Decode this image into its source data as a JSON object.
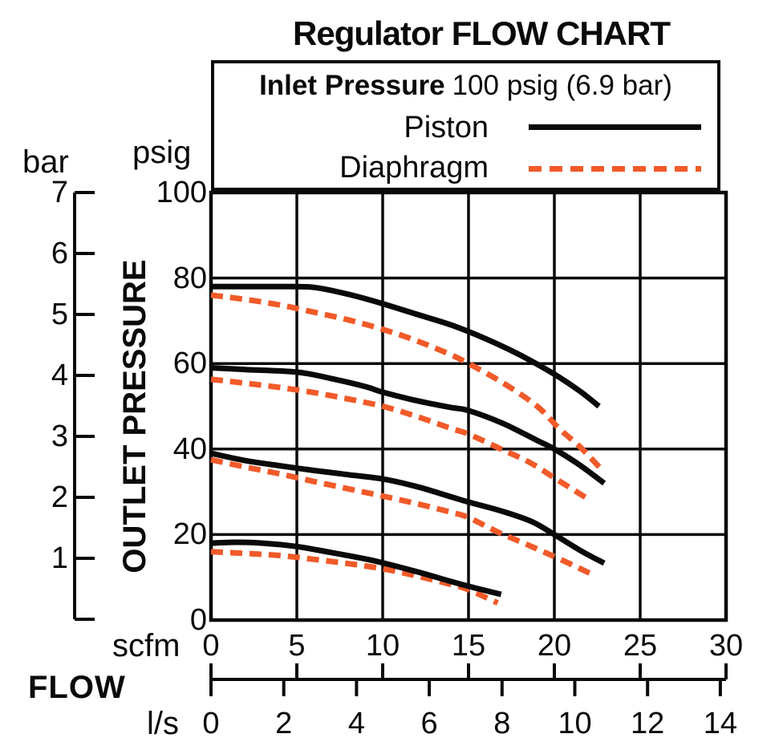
{
  "title": "Regulator FLOW CHART",
  "legend": {
    "inlet_bold": "Inlet Pressure",
    "inlet_rest": "100 psig (6.9 bar)"
  },
  "axes": {
    "y_title": "OUTLET PRESSURE",
    "y_unit_primary": "psig",
    "y_unit_secondary": "bar",
    "psig_ticks": [
      100,
      80,
      60,
      40,
      20,
      0
    ],
    "bar_ticks": [
      7,
      6,
      5,
      4,
      3,
      2,
      1
    ],
    "x_title": "FLOW",
    "x_unit_primary": "scfm",
    "x_unit_secondary": "l/s",
    "scfm_ticks": [
      0,
      5,
      10,
      15,
      20,
      25,
      30
    ],
    "ls_ticks": [
      0,
      2,
      4,
      6,
      8,
      10,
      12,
      14
    ]
  },
  "colors": {
    "piston": "#0a0a0a",
    "diaphragm": "#f15a29",
    "grid": "#000000"
  },
  "chart_data": {
    "type": "line",
    "title": "Regulator FLOW CHART",
    "annotation": "Inlet Pressure 100 psig (6.9 bar)",
    "xlabel": "FLOW",
    "x_units": [
      "scfm",
      "l/s"
    ],
    "ylabel": "OUTLET PRESSURE",
    "y_units": [
      "psig",
      "bar"
    ],
    "x_range_scfm": [
      0,
      30
    ],
    "y_range_psig": [
      0,
      100
    ],
    "y_range_bar": [
      0,
      7
    ],
    "ls_per_scfm": 0.4719,
    "grid": true,
    "legend_position": "top",
    "series": [
      {
        "name": "Piston",
        "style": "solid",
        "color": "#0a0a0a",
        "curves": [
          [
            [
              0,
              78
            ],
            [
              2,
              78
            ],
            [
              4,
              78
            ],
            [
              6,
              77.8
            ],
            [
              8,
              76.2
            ],
            [
              10,
              74
            ],
            [
              12,
              71.5
            ],
            [
              14,
              69
            ],
            [
              16,
              65.8
            ],
            [
              18,
              62
            ],
            [
              20,
              57.5
            ],
            [
              21.5,
              53.5
            ],
            [
              22.6,
              50
            ]
          ],
          [
            [
              0,
              59
            ],
            [
              2,
              58.6
            ],
            [
              5,
              58
            ],
            [
              7,
              56.5
            ],
            [
              9,
              54.6
            ],
            [
              10,
              53.3
            ],
            [
              12,
              51.3
            ],
            [
              14,
              49.7
            ],
            [
              15,
              49
            ],
            [
              17,
              46
            ],
            [
              19,
              42
            ],
            [
              20,
              40
            ],
            [
              21.5,
              36.2
            ],
            [
              22.9,
              32
            ]
          ],
          [
            [
              0,
              39
            ],
            [
              2,
              37.3
            ],
            [
              4,
              36.1
            ],
            [
              6,
              35
            ],
            [
              8,
              34
            ],
            [
              10,
              33
            ],
            [
              12,
              31.2
            ],
            [
              14,
              28.8
            ],
            [
              15,
              27.6
            ],
            [
              17,
              25.4
            ],
            [
              18.7,
              23
            ],
            [
              20,
              20
            ],
            [
              21.5,
              16.3
            ],
            [
              22.9,
              13.3
            ]
          ],
          [
            [
              0,
              18
            ],
            [
              1.5,
              18.2
            ],
            [
              3,
              18
            ],
            [
              5,
              17.2
            ],
            [
              7,
              15.8
            ],
            [
              9,
              14.3
            ],
            [
              10,
              13.4
            ],
            [
              12,
              11.3
            ],
            [
              14,
              9
            ],
            [
              15,
              7.9
            ],
            [
              16.9,
              6
            ]
          ]
        ]
      },
      {
        "name": "Diaphragm",
        "style": "dashed",
        "color": "#f15a29",
        "curves": [
          [
            [
              0,
              76
            ],
            [
              2,
              75
            ],
            [
              4,
              73.7
            ],
            [
              6,
              72
            ],
            [
              8,
              70.2
            ],
            [
              10,
              68
            ],
            [
              12,
              65.3
            ],
            [
              14,
              62
            ],
            [
              15,
              60
            ],
            [
              17,
              55.5
            ],
            [
              19,
              50
            ],
            [
              20.3,
              44.7
            ],
            [
              21.5,
              40.5
            ],
            [
              22.8,
              35
            ]
          ],
          [
            [
              0,
              56.3
            ],
            [
              2,
              55.4
            ],
            [
              4,
              54.4
            ],
            [
              6,
              53.2
            ],
            [
              8,
              51.7
            ],
            [
              10,
              50
            ],
            [
              12,
              47.6
            ],
            [
              14,
              44.8
            ],
            [
              15,
              43.5
            ],
            [
              17,
              39.8
            ],
            [
              18.6,
              36.8
            ],
            [
              20.3,
              32.5
            ],
            [
              22.1,
              28
            ]
          ],
          [
            [
              0,
              37.5
            ],
            [
              2,
              35.8
            ],
            [
              4,
              34.2
            ],
            [
              6,
              32.4
            ],
            [
              8,
              30.7
            ],
            [
              10,
              29
            ],
            [
              12,
              27.2
            ],
            [
              14,
              25.2
            ],
            [
              15,
              24
            ],
            [
              16.7,
              20.6
            ],
            [
              18.5,
              17.5
            ],
            [
              20.3,
              14.3
            ],
            [
              22.3,
              10.5
            ]
          ],
          [
            [
              0,
              16
            ],
            [
              2,
              15.6
            ],
            [
              4,
              15.1
            ],
            [
              6,
              14.2
            ],
            [
              8,
              13.2
            ],
            [
              10,
              12
            ],
            [
              12,
              10.3
            ],
            [
              14,
              8.3
            ],
            [
              15,
              7.1
            ],
            [
              16.7,
              4
            ]
          ]
        ]
      }
    ]
  }
}
